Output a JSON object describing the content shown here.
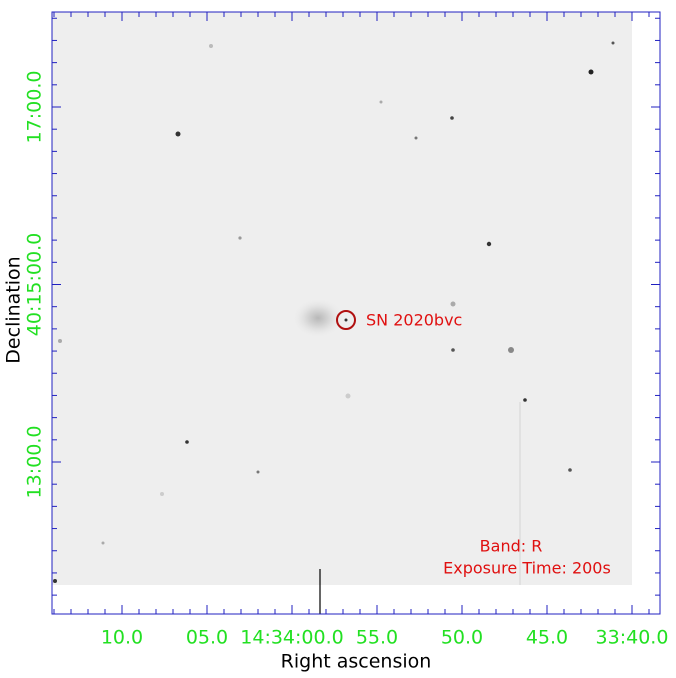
{
  "axes": {
    "x_label": "Right ascension",
    "y_label": "Declination",
    "x_ticks": [
      "10.0",
      "05.0",
      "14:34:00.0",
      "55.0",
      "50.0",
      "45.0",
      "33:40.0"
    ],
    "y_ticks": [
      "17:00.0",
      "40:15:00.0",
      "13:00.0"
    ]
  },
  "annotations": {
    "target": "SN 2020bvc",
    "band": "Band: R",
    "exposure": "Exposure Time: 200s"
  }
}
